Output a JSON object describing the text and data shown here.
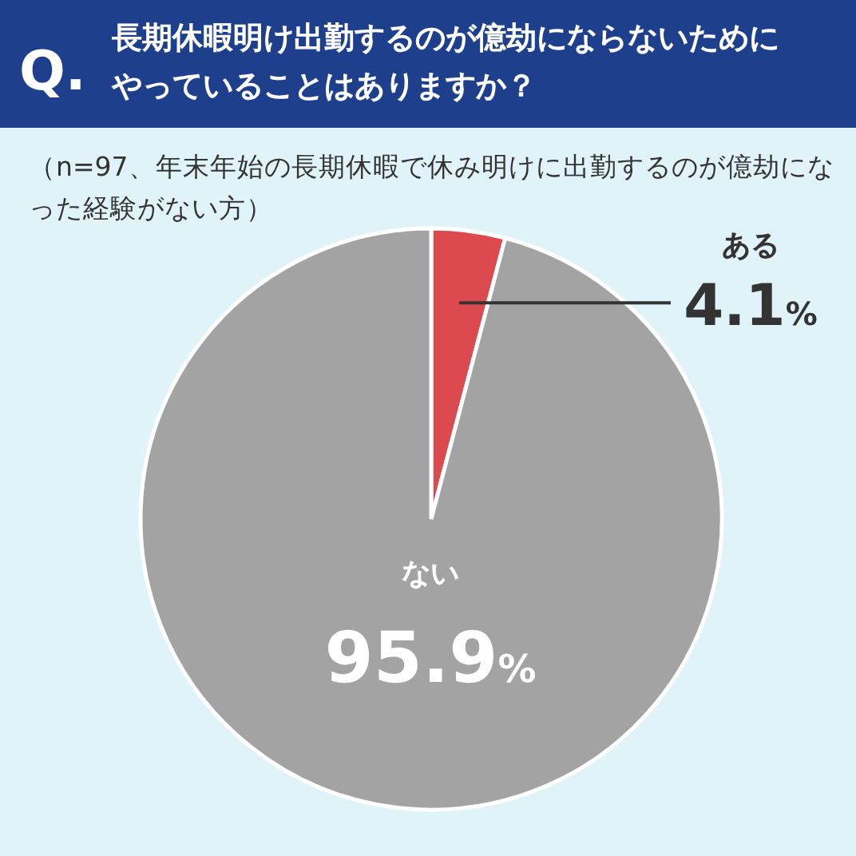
{
  "chart_data": {
    "type": "pie",
    "title": "長期休暇明け出勤するのが億劫にならないためにやっていることはありますか？",
    "subtitle": "（n=97、年末年始の長期休暇で休み明けに出勤するのが億劫になった経験がない方）",
    "annotations": [
      "Q."
    ],
    "categories": [
      "ある",
      "ない"
    ],
    "values": [
      4.1,
      95.9
    ],
    "colors": [
      "#dc4a50",
      "#a3a3a3"
    ],
    "value_labels": [
      "4.1%",
      "95.9%"
    ]
  }
}
